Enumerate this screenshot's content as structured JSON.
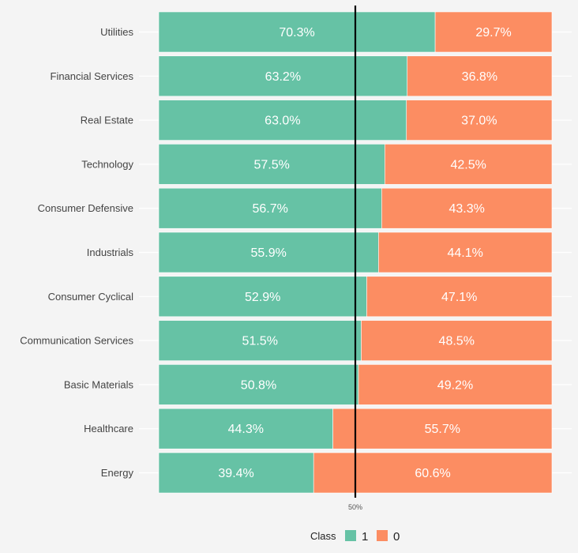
{
  "chart_data": {
    "type": "bar",
    "orientation": "horizontal",
    "stacked": "percent",
    "categories": [
      "Utilities",
      "Financial Services",
      "Real Estate",
      "Technology",
      "Consumer Defensive",
      "Industrials",
      "Consumer Cyclical",
      "Communication Services",
      "Basic Materials",
      "Healthcare",
      "Energy"
    ],
    "series": [
      {
        "name": "1",
        "color": "#66c2a5",
        "values": [
          70.3,
          63.2,
          63.0,
          57.5,
          56.7,
          55.9,
          52.9,
          51.5,
          50.8,
          44.3,
          39.4
        ],
        "labels": [
          "70.3%",
          "63.2%",
          "63.0%",
          "57.5%",
          "56.7%",
          "55.9%",
          "52.9%",
          "51.5%",
          "50.8%",
          "44.3%",
          "39.4%"
        ]
      },
      {
        "name": "0",
        "color": "#fc8d62",
        "values": [
          29.7,
          36.8,
          37.0,
          42.5,
          43.3,
          44.1,
          47.1,
          48.5,
          49.2,
          55.7,
          60.6
        ],
        "labels": [
          "29.7%",
          "36.8%",
          "37.0%",
          "42.5%",
          "43.3%",
          "44.1%",
          "47.1%",
          "48.5%",
          "49.2%",
          "55.7%",
          "60.6%"
        ]
      }
    ],
    "reference_line": {
      "value": 50,
      "label": "50%"
    },
    "xlim": [
      0,
      100
    ],
    "legend": {
      "title": "Class",
      "position": "bottom"
    },
    "grid": true
  }
}
